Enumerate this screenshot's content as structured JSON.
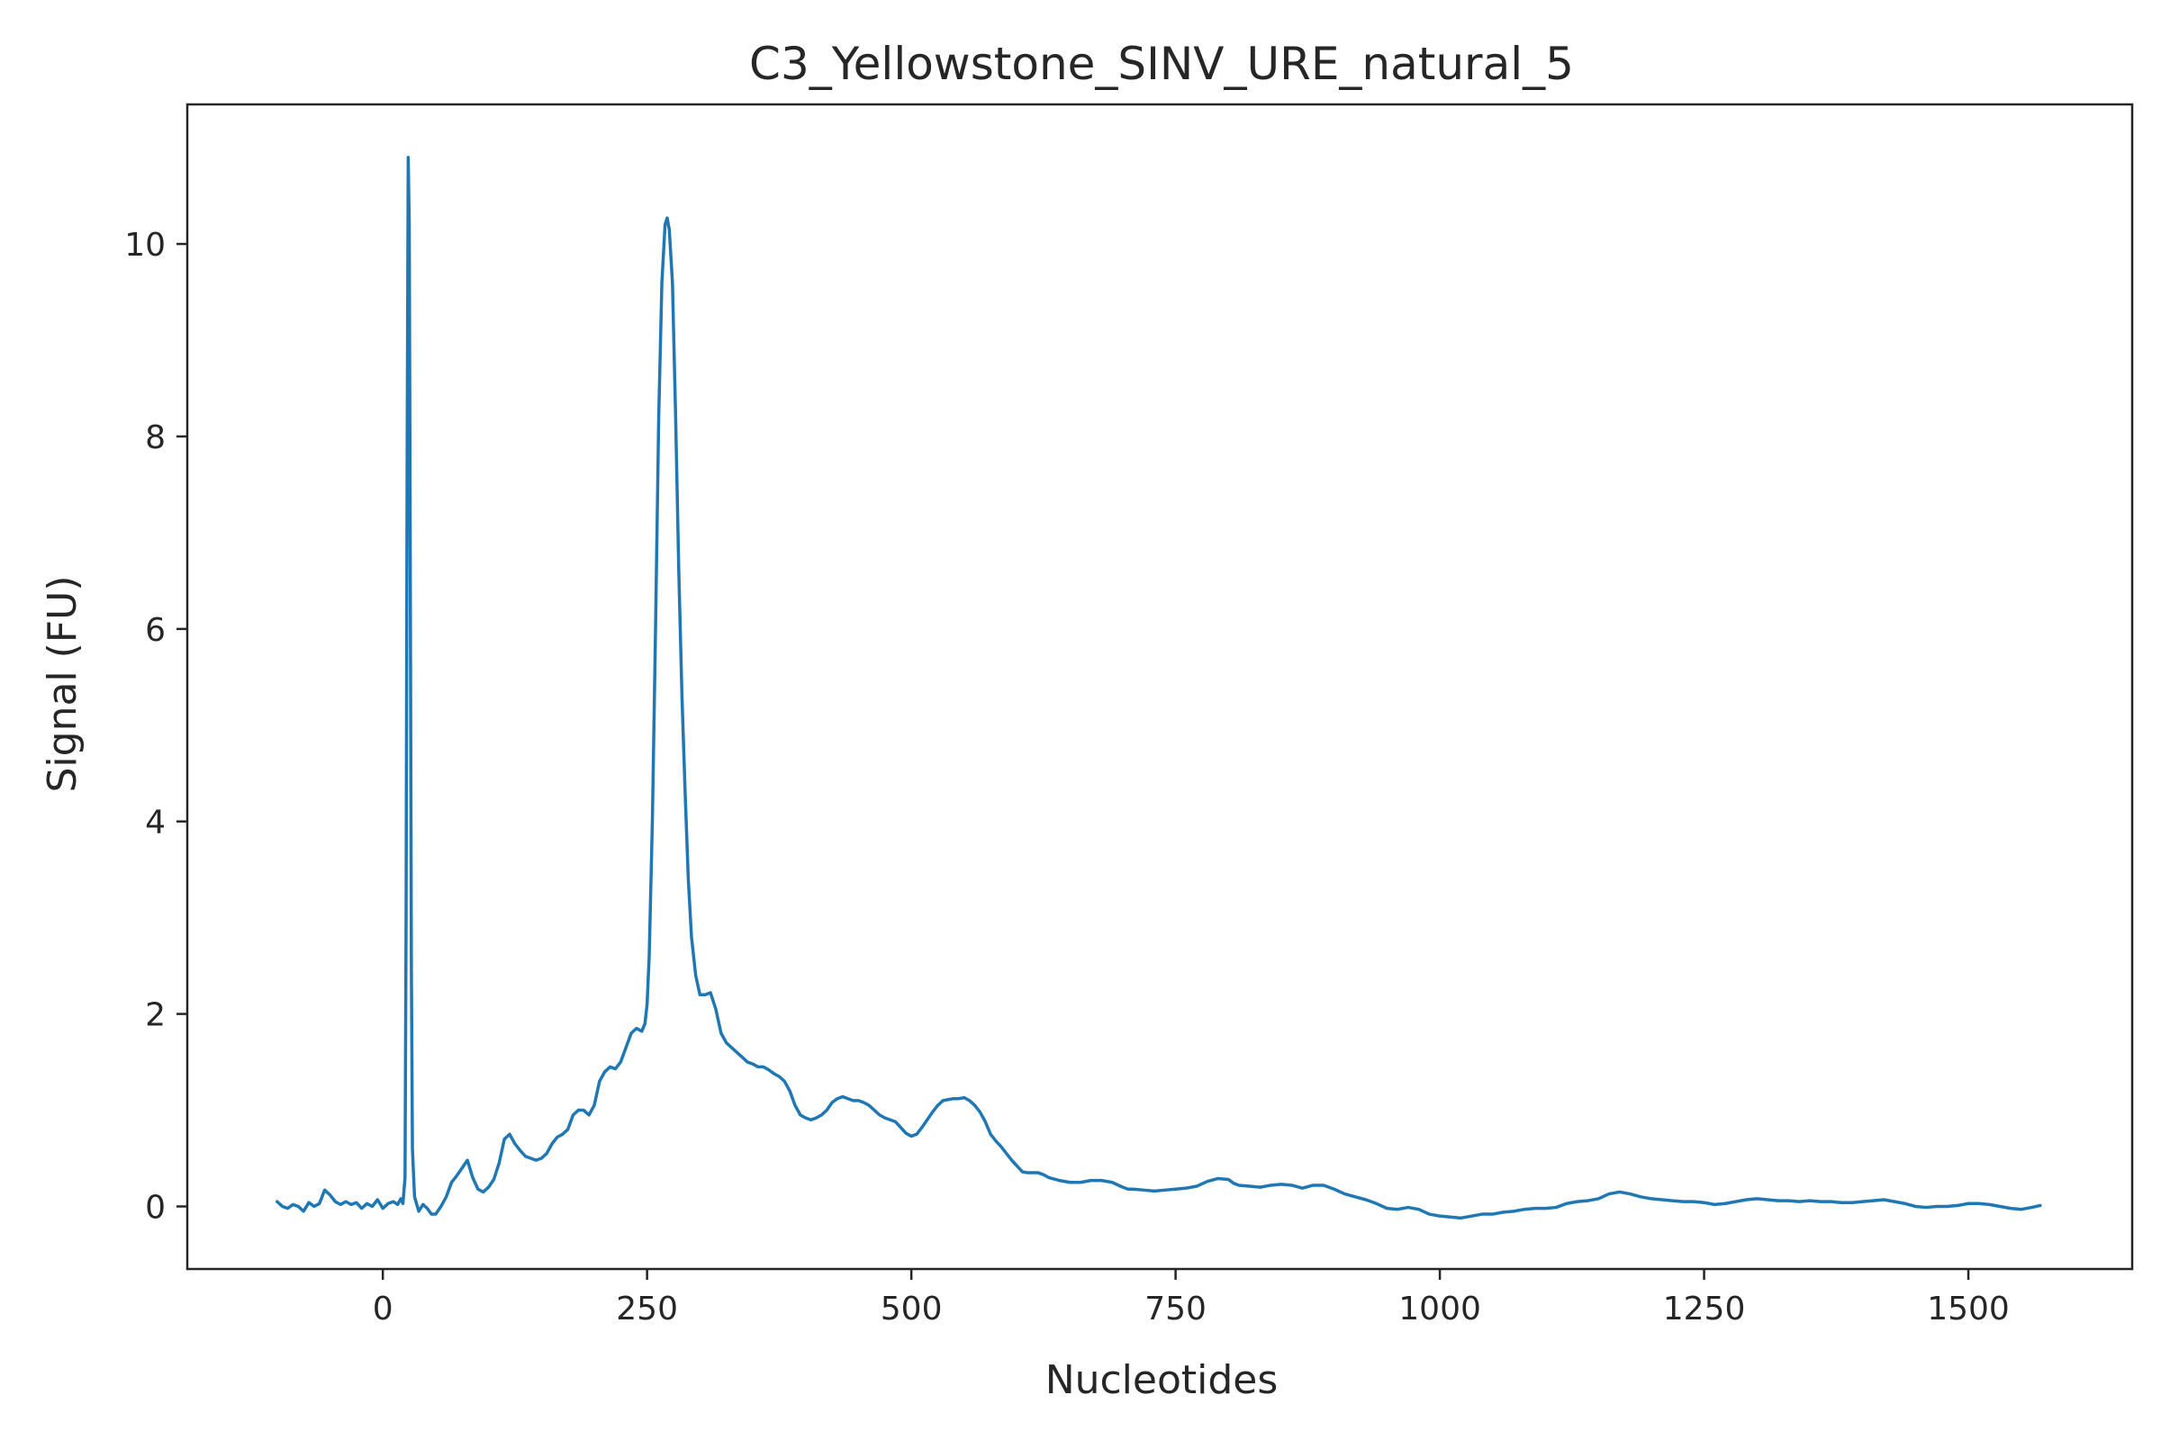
{
  "chart_data": {
    "type": "line",
    "title": "C3_Yellowstone_SINV_URE_natural_5",
    "xlabel": "Nucleotides",
    "ylabel": "Signal (FU)",
    "xlim": [
      -185,
      1655
    ],
    "ylim": [
      -0.65,
      11.45
    ],
    "xticks": [
      0,
      250,
      500,
      750,
      1000,
      1250,
      1500
    ],
    "yticks": [
      0,
      2,
      4,
      6,
      8,
      10
    ],
    "grid": false,
    "legend": "none",
    "series": [
      {
        "color": "#1f77b4",
        "points": [
          [
            -100,
            0.05
          ],
          [
            -95,
            0.0
          ],
          [
            -90,
            -0.02
          ],
          [
            -85,
            0.02
          ],
          [
            -80,
            0.0
          ],
          [
            -75,
            -0.05
          ],
          [
            -70,
            0.04
          ],
          [
            -65,
            0.0
          ],
          [
            -60,
            0.03
          ],
          [
            -55,
            0.17
          ],
          [
            -50,
            0.12
          ],
          [
            -45,
            0.05
          ],
          [
            -40,
            0.02
          ],
          [
            -35,
            0.05
          ],
          [
            -30,
            0.02
          ],
          [
            -25,
            0.04
          ],
          [
            -20,
            -0.02
          ],
          [
            -15,
            0.03
          ],
          [
            -10,
            0.0
          ],
          [
            -5,
            0.07
          ],
          [
            0,
            -0.02
          ],
          [
            5,
            0.03
          ],
          [
            10,
            0.05
          ],
          [
            14,
            0.02
          ],
          [
            17,
            0.08
          ],
          [
            19,
            0.03
          ],
          [
            21,
            0.3
          ],
          [
            22,
            3.0
          ],
          [
            23,
            7.8
          ],
          [
            24,
            10.9
          ],
          [
            25,
            10.2
          ],
          [
            26,
            6.5
          ],
          [
            27,
            2.5
          ],
          [
            28,
            0.6
          ],
          [
            30,
            0.1
          ],
          [
            34,
            -0.05
          ],
          [
            38,
            0.02
          ],
          [
            42,
            -0.02
          ],
          [
            46,
            -0.08
          ],
          [
            50,
            -0.08
          ],
          [
            55,
            0.0
          ],
          [
            60,
            0.1
          ],
          [
            65,
            0.25
          ],
          [
            70,
            0.32
          ],
          [
            75,
            0.4
          ],
          [
            80,
            0.48
          ],
          [
            85,
            0.3
          ],
          [
            90,
            0.18
          ],
          [
            95,
            0.15
          ],
          [
            100,
            0.2
          ],
          [
            105,
            0.28
          ],
          [
            110,
            0.45
          ],
          [
            115,
            0.7
          ],
          [
            120,
            0.75
          ],
          [
            125,
            0.65
          ],
          [
            130,
            0.58
          ],
          [
            135,
            0.52
          ],
          [
            140,
            0.5
          ],
          [
            145,
            0.48
          ],
          [
            150,
            0.5
          ],
          [
            155,
            0.55
          ],
          [
            160,
            0.65
          ],
          [
            165,
            0.72
          ],
          [
            170,
            0.75
          ],
          [
            175,
            0.8
          ],
          [
            180,
            0.95
          ],
          [
            185,
            1.0
          ],
          [
            190,
            1.0
          ],
          [
            195,
            0.95
          ],
          [
            200,
            1.05
          ],
          [
            205,
            1.3
          ],
          [
            210,
            1.4
          ],
          [
            215,
            1.45
          ],
          [
            220,
            1.43
          ],
          [
            225,
            1.5
          ],
          [
            230,
            1.65
          ],
          [
            235,
            1.8
          ],
          [
            240,
            1.85
          ],
          [
            245,
            1.82
          ],
          [
            248,
            1.9
          ],
          [
            250,
            2.1
          ],
          [
            252,
            2.6
          ],
          [
            255,
            4.0
          ],
          [
            258,
            6.0
          ],
          [
            261,
            8.2
          ],
          [
            264,
            9.6
          ],
          [
            267,
            10.2
          ],
          [
            269,
            10.27
          ],
          [
            271,
            10.15
          ],
          [
            274,
            9.6
          ],
          [
            277,
            8.2
          ],
          [
            280,
            6.6
          ],
          [
            283,
            5.3
          ],
          [
            286,
            4.3
          ],
          [
            289,
            3.4
          ],
          [
            292,
            2.8
          ],
          [
            296,
            2.4
          ],
          [
            300,
            2.2
          ],
          [
            305,
            2.2
          ],
          [
            310,
            2.22
          ],
          [
            315,
            2.05
          ],
          [
            320,
            1.8
          ],
          [
            325,
            1.7
          ],
          [
            330,
            1.65
          ],
          [
            335,
            1.6
          ],
          [
            340,
            1.55
          ],
          [
            345,
            1.5
          ],
          [
            350,
            1.48
          ],
          [
            355,
            1.45
          ],
          [
            360,
            1.45
          ],
          [
            365,
            1.42
          ],
          [
            370,
            1.38
          ],
          [
            375,
            1.35
          ],
          [
            380,
            1.3
          ],
          [
            385,
            1.2
          ],
          [
            390,
            1.05
          ],
          [
            395,
            0.95
          ],
          [
            400,
            0.92
          ],
          [
            405,
            0.9
          ],
          [
            410,
            0.92
          ],
          [
            415,
            0.95
          ],
          [
            420,
            1.0
          ],
          [
            425,
            1.08
          ],
          [
            430,
            1.12
          ],
          [
            435,
            1.14
          ],
          [
            440,
            1.12
          ],
          [
            445,
            1.1
          ],
          [
            450,
            1.1
          ],
          [
            455,
            1.08
          ],
          [
            460,
            1.05
          ],
          [
            465,
            1.0
          ],
          [
            470,
            0.95
          ],
          [
            475,
            0.92
          ],
          [
            480,
            0.9
          ],
          [
            485,
            0.88
          ],
          [
            490,
            0.82
          ],
          [
            495,
            0.76
          ],
          [
            500,
            0.73
          ],
          [
            505,
            0.75
          ],
          [
            510,
            0.82
          ],
          [
            515,
            0.9
          ],
          [
            520,
            0.98
          ],
          [
            525,
            1.05
          ],
          [
            530,
            1.1
          ],
          [
            535,
            1.11
          ],
          [
            540,
            1.12
          ],
          [
            545,
            1.12
          ],
          [
            550,
            1.13
          ],
          [
            555,
            1.1
          ],
          [
            560,
            1.05
          ],
          [
            565,
            0.98
          ],
          [
            570,
            0.88
          ],
          [
            575,
            0.75
          ],
          [
            580,
            0.68
          ],
          [
            585,
            0.62
          ],
          [
            590,
            0.55
          ],
          [
            595,
            0.48
          ],
          [
            600,
            0.42
          ],
          [
            605,
            0.36
          ],
          [
            610,
            0.35
          ],
          [
            615,
            0.35
          ],
          [
            620,
            0.35
          ],
          [
            625,
            0.33
          ],
          [
            630,
            0.3
          ],
          [
            640,
            0.27
          ],
          [
            650,
            0.25
          ],
          [
            660,
            0.25
          ],
          [
            670,
            0.27
          ],
          [
            680,
            0.27
          ],
          [
            690,
            0.25
          ],
          [
            700,
            0.2
          ],
          [
            705,
            0.18
          ],
          [
            710,
            0.18
          ],
          [
            720,
            0.17
          ],
          [
            730,
            0.16
          ],
          [
            740,
            0.17
          ],
          [
            750,
            0.18
          ],
          [
            760,
            0.19
          ],
          [
            770,
            0.21
          ],
          [
            780,
            0.26
          ],
          [
            790,
            0.29
          ],
          [
            800,
            0.28
          ],
          [
            805,
            0.24
          ],
          [
            810,
            0.22
          ],
          [
            820,
            0.21
          ],
          [
            830,
            0.2
          ],
          [
            840,
            0.22
          ],
          [
            850,
            0.23
          ],
          [
            860,
            0.22
          ],
          [
            870,
            0.19
          ],
          [
            880,
            0.22
          ],
          [
            890,
            0.22
          ],
          [
            900,
            0.18
          ],
          [
            910,
            0.13
          ],
          [
            920,
            0.1
          ],
          [
            930,
            0.07
          ],
          [
            940,
            0.03
          ],
          [
            950,
            -0.02
          ],
          [
            960,
            -0.03
          ],
          [
            970,
            -0.01
          ],
          [
            980,
            -0.03
          ],
          [
            990,
            -0.08
          ],
          [
            1000,
            -0.1
          ],
          [
            1010,
            -0.11
          ],
          [
            1020,
            -0.12
          ],
          [
            1030,
            -0.1
          ],
          [
            1040,
            -0.08
          ],
          [
            1050,
            -0.08
          ],
          [
            1060,
            -0.06
          ],
          [
            1070,
            -0.05
          ],
          [
            1080,
            -0.03
          ],
          [
            1090,
            -0.02
          ],
          [
            1100,
            -0.02
          ],
          [
            1110,
            -0.01
          ],
          [
            1120,
            0.03
          ],
          [
            1130,
            0.05
          ],
          [
            1140,
            0.06
          ],
          [
            1150,
            0.08
          ],
          [
            1160,
            0.13
          ],
          [
            1170,
            0.15
          ],
          [
            1180,
            0.13
          ],
          [
            1190,
            0.1
          ],
          [
            1200,
            0.08
          ],
          [
            1210,
            0.07
          ],
          [
            1220,
            0.06
          ],
          [
            1230,
            0.05
          ],
          [
            1240,
            0.05
          ],
          [
            1250,
            0.04
          ],
          [
            1260,
            0.02
          ],
          [
            1270,
            0.03
          ],
          [
            1280,
            0.05
          ],
          [
            1290,
            0.07
          ],
          [
            1300,
            0.08
          ],
          [
            1310,
            0.07
          ],
          [
            1320,
            0.06
          ],
          [
            1330,
            0.06
          ],
          [
            1340,
            0.05
          ],
          [
            1350,
            0.06
          ],
          [
            1360,
            0.05
          ],
          [
            1370,
            0.05
          ],
          [
            1380,
            0.04
          ],
          [
            1390,
            0.04
          ],
          [
            1400,
            0.05
          ],
          [
            1410,
            0.06
          ],
          [
            1420,
            0.07
          ],
          [
            1430,
            0.05
          ],
          [
            1440,
            0.03
          ],
          [
            1450,
            0.0
          ],
          [
            1460,
            -0.01
          ],
          [
            1470,
            0.0
          ],
          [
            1480,
            0.0
          ],
          [
            1490,
            0.01
          ],
          [
            1500,
            0.03
          ],
          [
            1510,
            0.03
          ],
          [
            1520,
            0.02
          ],
          [
            1530,
            0.0
          ],
          [
            1540,
            -0.02
          ],
          [
            1550,
            -0.03
          ],
          [
            1560,
            -0.01
          ],
          [
            1568,
            0.01
          ]
        ]
      }
    ]
  }
}
